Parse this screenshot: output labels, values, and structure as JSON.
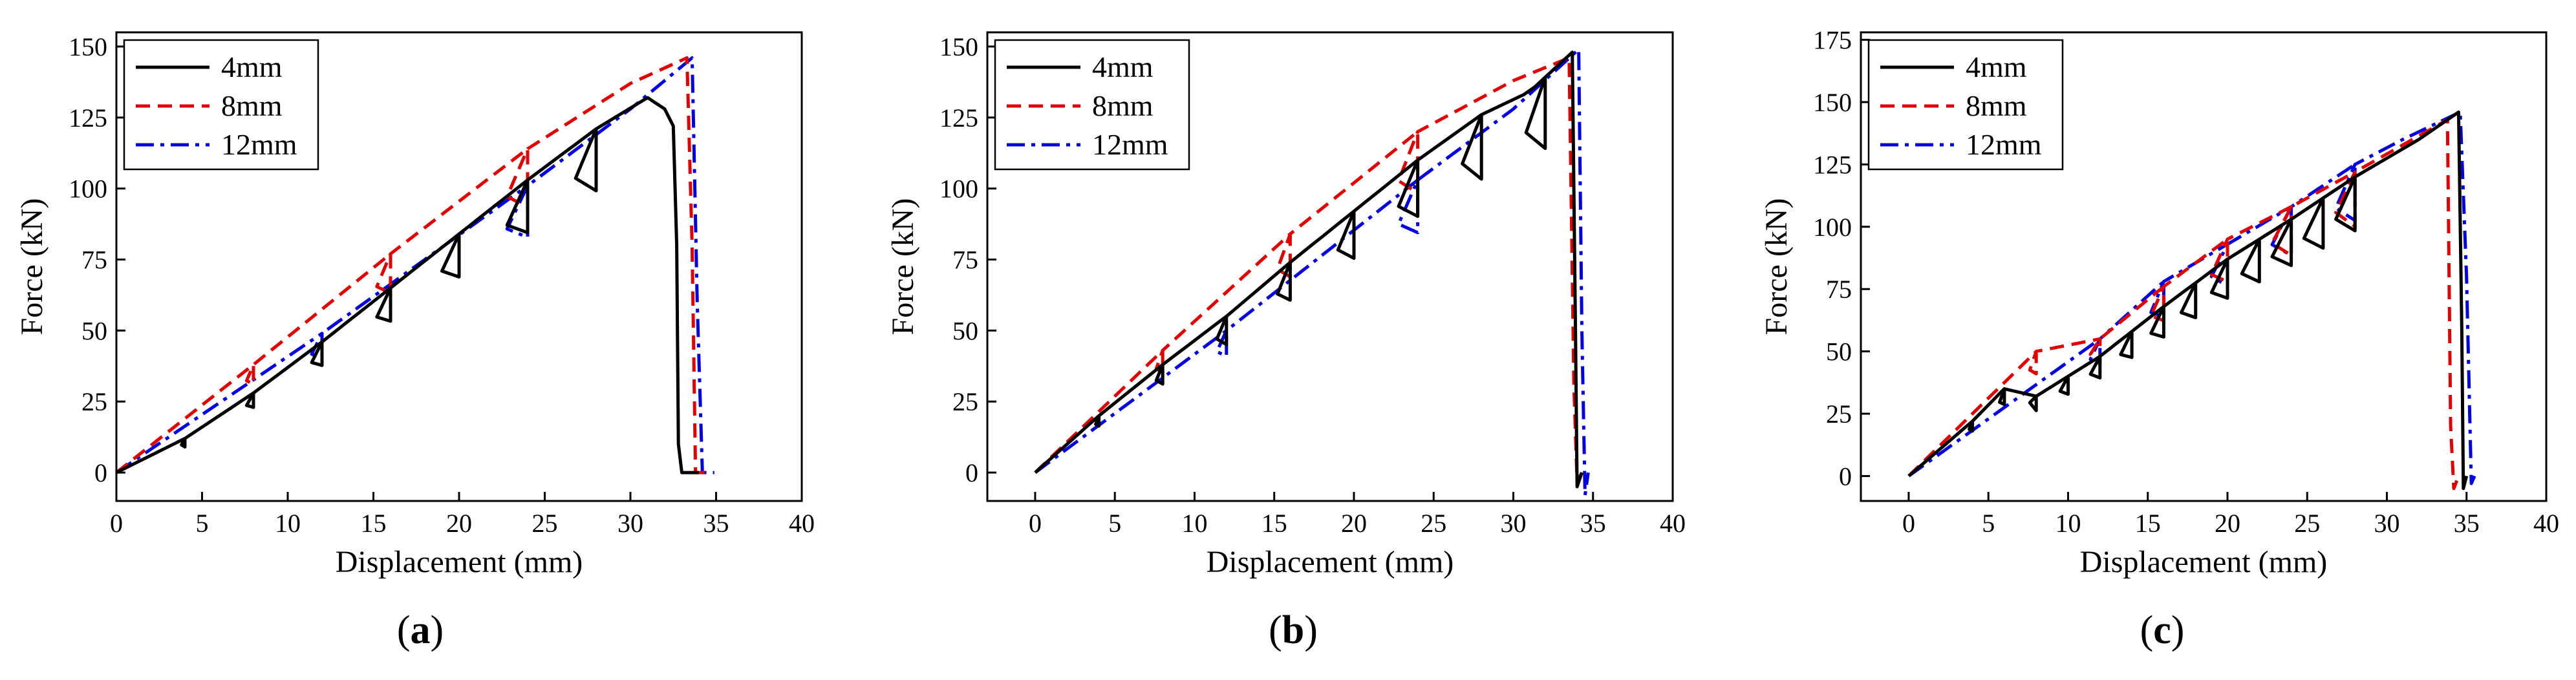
{
  "chart_data": [
    {
      "type": "line",
      "panel": "(a)",
      "caption_letter": "a",
      "xlabel": "Displacement (mm)",
      "ylabel": "Force (kN)",
      "xlim": [
        0,
        40
      ],
      "ylim": [
        -10,
        155
      ],
      "xticks": [
        0,
        5,
        10,
        15,
        20,
        25,
        30,
        35,
        40
      ],
      "yticks": [
        0,
        25,
        50,
        75,
        100,
        125,
        150
      ],
      "legend_position": "top-left",
      "series": [
        {
          "name": "4mm",
          "color": "#000000",
          "dash": "solid",
          "points": [
            [
              0,
              0
            ],
            [
              4,
              12
            ],
            [
              8,
              28
            ],
            [
              12,
              46
            ],
            [
              16,
              65
            ],
            [
              20,
              84
            ],
            [
              24,
              103
            ],
            [
              28,
              121
            ],
            [
              31,
              132
            ],
            [
              32,
              128
            ],
            [
              32.5,
              122
            ],
            [
              32.7,
              80
            ],
            [
              32.8,
              10
            ],
            [
              33,
              0
            ],
            [
              33.5,
              0
            ],
            [
              34,
              0
            ]
          ],
          "cycles": [
            4,
            8,
            12,
            16,
            20,
            24,
            28
          ]
        },
        {
          "name": "8mm",
          "color": "#e00000",
          "dash": "dashed",
          "points": [
            [
              0,
              0
            ],
            [
              8,
              38
            ],
            [
              16,
              77
            ],
            [
              24,
              114
            ],
            [
              30,
              137
            ],
            [
              33.3,
              146
            ],
            [
              33.6,
              80
            ],
            [
              33.8,
              0
            ],
            [
              34.6,
              0
            ]
          ],
          "cycles": [
            8,
            16,
            24
          ]
        },
        {
          "name": "12mm",
          "color": "#0000e0",
          "dash": "dashdot",
          "points": [
            [
              0,
              0
            ],
            [
              12,
              49
            ],
            [
              24,
              101
            ],
            [
              30,
              128
            ],
            [
              33.6,
              146
            ],
            [
              33.9,
              60
            ],
            [
              34.2,
              0
            ],
            [
              34.9,
              0
            ]
          ],
          "cycles": [
            12,
            24
          ]
        }
      ]
    },
    {
      "type": "line",
      "panel": "(b)",
      "caption_letter": "b",
      "xlabel": "Displacement (mm)",
      "ylabel": "Force (kN)",
      "xlim": [
        -3,
        40
      ],
      "ylim": [
        -10,
        155
      ],
      "xticks": [
        0,
        5,
        10,
        15,
        20,
        25,
        30,
        35,
        40
      ],
      "yticks": [
        0,
        25,
        50,
        75,
        100,
        125,
        150
      ],
      "legend_position": "top-left",
      "series": [
        {
          "name": "4mm",
          "color": "#000000",
          "dash": "solid",
          "points": [
            [
              0,
              0
            ],
            [
              4,
              20
            ],
            [
              8,
              38
            ],
            [
              12,
              55
            ],
            [
              16,
              74
            ],
            [
              20,
              92
            ],
            [
              24,
              110
            ],
            [
              28,
              126
            ],
            [
              31,
              134
            ],
            [
              33.7,
              148
            ],
            [
              33.9,
              50
            ],
            [
              34,
              -5
            ],
            [
              34.3,
              0
            ]
          ],
          "cycles": [
            4,
            8,
            12,
            16,
            20,
            24,
            28,
            32
          ]
        },
        {
          "name": "8mm",
          "color": "#e00000",
          "dash": "dashed",
          "points": [
            [
              0,
              0
            ],
            [
              8,
              43
            ],
            [
              16,
              84
            ],
            [
              24,
              120
            ],
            [
              30,
              138
            ],
            [
              33.5,
              146
            ],
            [
              33.8,
              30
            ],
            [
              34,
              -3
            ],
            [
              34.3,
              0
            ]
          ],
          "cycles": [
            8,
            16,
            24
          ]
        },
        {
          "name": "12mm",
          "color": "#0000e0",
          "dash": "dashdot",
          "points": [
            [
              0,
              0
            ],
            [
              12,
              50
            ],
            [
              24,
              103
            ],
            [
              30,
              128
            ],
            [
              34.1,
              149
            ],
            [
              34.3,
              50
            ],
            [
              34.5,
              -8
            ],
            [
              34.7,
              0
            ]
          ],
          "cycles": [
            12,
            24
          ]
        }
      ]
    },
    {
      "type": "line",
      "panel": "(c)",
      "caption_letter": "c",
      "xlabel": "Displacement (mm)",
      "ylabel": "Force (kN)",
      "xlim": [
        -3,
        40
      ],
      "ylim": [
        -10,
        178
      ],
      "xticks": [
        0,
        5,
        10,
        15,
        20,
        25,
        30,
        35,
        40
      ],
      "yticks": [
        0,
        25,
        50,
        75,
        100,
        125,
        150,
        175
      ],
      "legend_position": "top-left",
      "series": [
        {
          "name": "4mm",
          "color": "#000000",
          "dash": "solid",
          "points": [
            [
              0,
              0
            ],
            [
              4,
              22
            ],
            [
              6,
              35
            ],
            [
              8,
              32
            ],
            [
              12,
              48
            ],
            [
              16,
              68
            ],
            [
              20,
              87
            ],
            [
              24,
              103
            ],
            [
              28,
              120
            ],
            [
              32,
              135
            ],
            [
              34.5,
              146
            ],
            [
              34.7,
              60
            ],
            [
              34.8,
              -5
            ],
            [
              35,
              0
            ]
          ],
          "cycles": [
            4,
            6,
            8,
            10,
            12,
            14,
            16,
            18,
            20,
            22,
            24,
            26,
            28
          ]
        },
        {
          "name": "8mm",
          "color": "#e00000",
          "dash": "dashed",
          "points": [
            [
              0,
              0
            ],
            [
              8,
              50
            ],
            [
              12,
              55
            ],
            [
              16,
              76
            ],
            [
              20,
              95
            ],
            [
              24,
              108
            ],
            [
              28,
              122
            ],
            [
              33,
              140
            ],
            [
              33.8,
              143
            ],
            [
              34,
              20
            ],
            [
              34.2,
              -5
            ],
            [
              34.5,
              0
            ]
          ],
          "cycles": [
            8,
            12,
            16,
            20,
            24,
            28
          ]
        },
        {
          "name": "12mm",
          "color": "#0000e0",
          "dash": "dashdot",
          "points": [
            [
              0,
              0
            ],
            [
              12,
              55
            ],
            [
              16,
              78
            ],
            [
              20,
              93
            ],
            [
              24,
              108
            ],
            [
              28,
              125
            ],
            [
              31,
              135
            ],
            [
              34.6,
              146
            ],
            [
              35,
              80
            ],
            [
              35.3,
              -3
            ],
            [
              35.5,
              0
            ]
          ],
          "cycles": [
            12,
            16,
            20,
            24,
            28
          ]
        }
      ]
    }
  ]
}
